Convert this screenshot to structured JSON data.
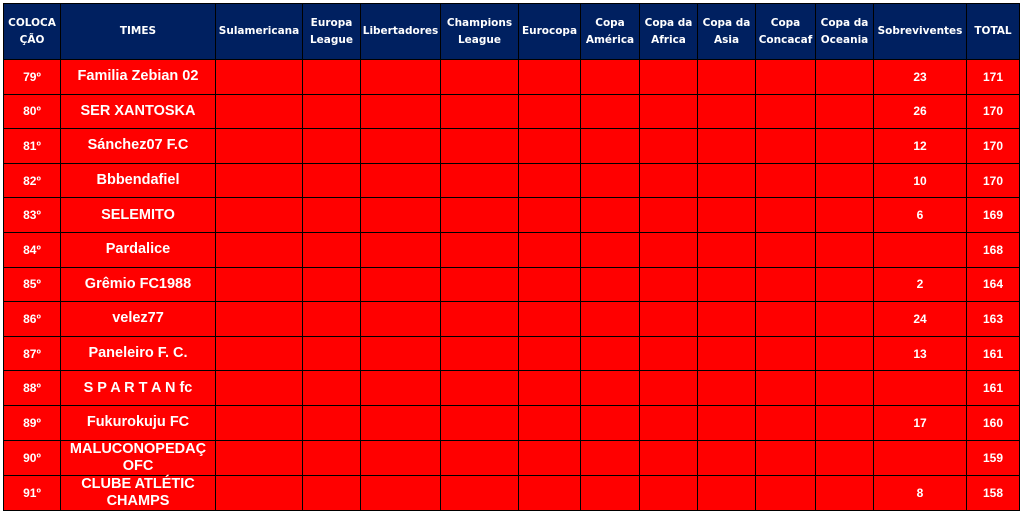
{
  "columns": [
    "COLOCA ÇÃO",
    "TIMES",
    "Sulamericana",
    "Europa League",
    "Libertadores",
    "Champions League",
    "Eurocopa",
    "Copa América",
    "Copa da Africa",
    "Copa da Asia",
    "Copa Concacaf",
    "Copa da Oceania",
    "Sobreviventes",
    "TOTAL"
  ],
  "rows": [
    {
      "pos": "79º",
      "team": "Familia Zebian 02",
      "sob": "23",
      "total": "171"
    },
    {
      "pos": "80º",
      "team": "SER XANTOSKA",
      "sob": "26",
      "total": "170"
    },
    {
      "pos": "81º",
      "team": "Sánchez07 F.C",
      "sob": "12",
      "total": "170"
    },
    {
      "pos": "82º",
      "team": "Bbbendafiel",
      "sob": "10",
      "total": "170"
    },
    {
      "pos": "83º",
      "team": "SELEMITO",
      "sob": "6",
      "total": "169"
    },
    {
      "pos": "84º",
      "team": "Pardalice",
      "sob": "",
      "total": "168"
    },
    {
      "pos": "85º",
      "team": "Grêmio FC1988",
      "sob": "2",
      "total": "164"
    },
    {
      "pos": "86º",
      "team": "velez77",
      "sob": "24",
      "total": "163"
    },
    {
      "pos": "87º",
      "team": "Paneleiro F. C.",
      "sob": "13",
      "total": "161"
    },
    {
      "pos": "88º",
      "team": "S P A R T A N fc",
      "sob": "",
      "total": "161"
    },
    {
      "pos": "89º",
      "team": "Fukurokuju FC",
      "sob": "17",
      "total": "160"
    },
    {
      "pos": "90º",
      "team": "MALUCONOPEDAÇ OFC",
      "sob": "",
      "total": "159"
    },
    {
      "pos": "91º",
      "team": "CLUBE ATLÉTIC CHAMPS",
      "sob": "8",
      "total": "158"
    }
  ],
  "colors": {
    "header": "#002060",
    "row": "#ff0000",
    "text": "#ffffff"
  }
}
